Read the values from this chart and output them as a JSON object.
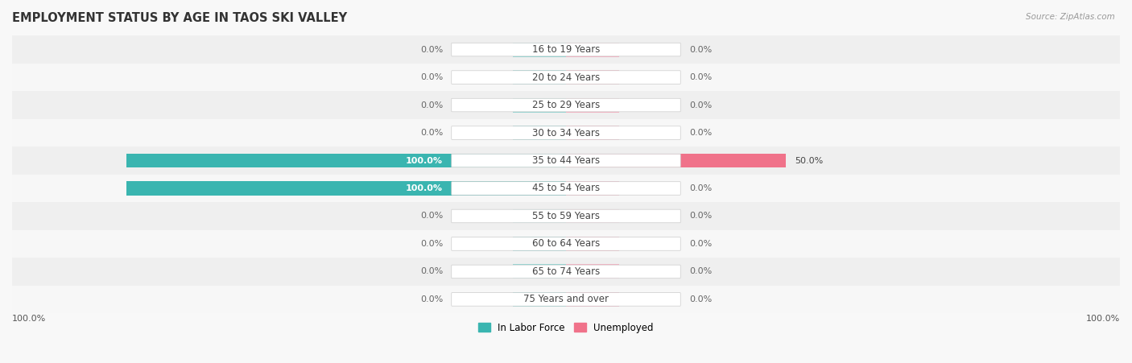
{
  "title": "EMPLOYMENT STATUS BY AGE IN TAOS SKI VALLEY",
  "source": "Source: ZipAtlas.com",
  "categories": [
    "16 to 19 Years",
    "20 to 24 Years",
    "25 to 29 Years",
    "30 to 34 Years",
    "35 to 44 Years",
    "45 to 54 Years",
    "55 to 59 Years",
    "60 to 64 Years",
    "65 to 74 Years",
    "75 Years and over"
  ],
  "in_labor_force": [
    0.0,
    0.0,
    0.0,
    0.0,
    100.0,
    100.0,
    0.0,
    0.0,
    0.0,
    0.0
  ],
  "unemployed": [
    0.0,
    0.0,
    0.0,
    0.0,
    50.0,
    0.0,
    0.0,
    0.0,
    0.0,
    0.0
  ],
  "labor_color": "#3ab5b0",
  "labor_color_light": "#8fd4d1",
  "unemployed_color": "#f0728a",
  "unemployed_color_light": "#f4afc0",
  "row_bg_even": "#efefef",
  "row_bg_odd": "#f7f7f7",
  "max_value": 100.0,
  "stub_size": 12.0,
  "legend_labor": "In Labor Force",
  "legend_unemployed": "Unemployed",
  "x_left_label": "100.0%",
  "x_right_label": "100.0%",
  "title_fontsize": 10.5,
  "label_fontsize": 8,
  "category_fontsize": 8.5,
  "bar_height": 0.52,
  "fig_bg": "#f8f8f8",
  "pill_bg": "white",
  "pill_border": "#cccccc"
}
